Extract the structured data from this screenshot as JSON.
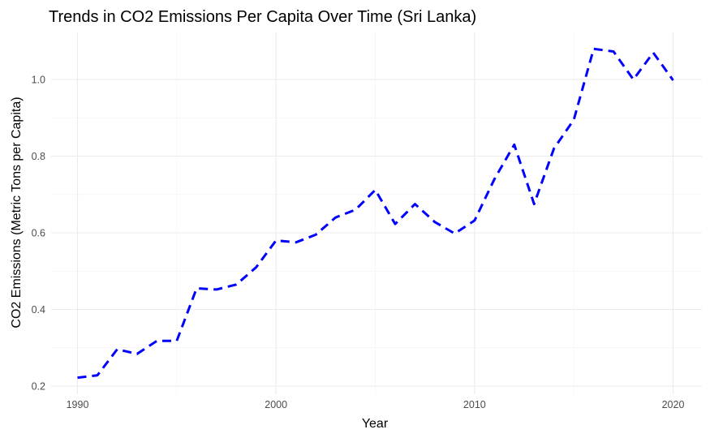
{
  "chart_data": {
    "type": "line",
    "title": "Trends in CO2 Emissions Per Capita Over Time (Sri Lanka)",
    "xlabel": "Year",
    "ylabel": "CO2 Emissions (Metric Tons per Capita)",
    "xlim": [
      1990,
      2020
    ],
    "ylim": [
      0.2,
      1.08
    ],
    "x_ticks": [
      1990,
      2000,
      2010,
      2020
    ],
    "y_ticks": [
      0.2,
      0.4,
      0.6,
      0.8,
      1.0
    ],
    "x_tick_labels": [
      "1990",
      "2000",
      "2010",
      "2020"
    ],
    "y_tick_labels": [
      "0.2",
      "0.4",
      "0.6",
      "0.8",
      "1.0"
    ],
    "grid": true,
    "line_color": "#0000ff",
    "line_style": "dashed",
    "series": [
      {
        "x": [
          1990,
          1991,
          1992,
          1993,
          1994,
          1995,
          1996,
          1997,
          1998,
          1999,
          2000,
          2001,
          2002,
          2003,
          2004,
          2005,
          2006,
          2007,
          2008,
          2009,
          2010,
          2011,
          2012,
          2013,
          2014,
          2015,
          2016,
          2017,
          2018,
          2019,
          2020
        ],
        "values": [
          0.222,
          0.228,
          0.296,
          0.284,
          0.318,
          0.318,
          0.455,
          0.452,
          0.465,
          0.51,
          0.58,
          0.575,
          0.595,
          0.64,
          0.66,
          0.712,
          0.623,
          0.675,
          0.628,
          0.598,
          0.632,
          0.74,
          0.83,
          0.675,
          0.82,
          0.895,
          1.08,
          1.073,
          1.0,
          1.07,
          0.998
        ]
      }
    ]
  }
}
